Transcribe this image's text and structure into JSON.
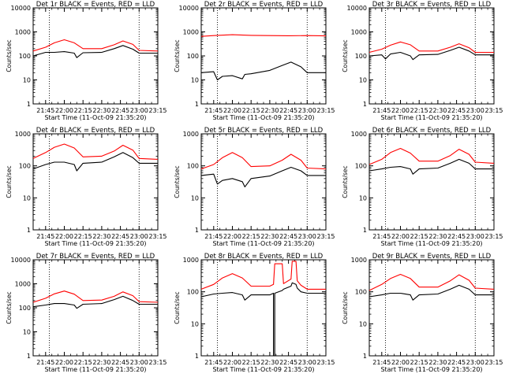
{
  "colors": {
    "events": "#000000",
    "lld": "#ff0000",
    "frame": "#000000",
    "background": "#ffffff"
  },
  "chart_data": [
    {
      "type": "line",
      "title": "Det 1r BLACK = Events, RED = LLD",
      "ylabel": "Counts/sec",
      "xlabel": "Start Time (11-Oct-09 21:35:20)",
      "yscale": "log",
      "ylim": [
        1,
        10000
      ],
      "yticks": [
        "1",
        "10",
        "100",
        "1000",
        "10000"
      ],
      "xticks": [
        "21:45",
        "22:00",
        "22:15",
        "22:30",
        "22:45",
        "23:00",
        "23:15"
      ],
      "xlim": [
        "21:35",
        "23:15"
      ],
      "markers": [
        "21:48",
        "23:00"
      ],
      "series": [
        {
          "key": "lld",
          "x": [
            "21:35",
            "21:45",
            "21:52",
            "22:00",
            "22:08",
            "22:15",
            "22:30",
            "22:40",
            "22:47",
            "22:55",
            "23:00",
            "23:15"
          ],
          "y": [
            160,
            230,
            350,
            470,
            350,
            200,
            200,
            290,
            420,
            300,
            170,
            160
          ]
        },
        {
          "key": "events",
          "x": [
            "21:35",
            "21:45",
            "21:52",
            "22:00",
            "22:08",
            "22:10",
            "22:15",
            "22:30",
            "22:40",
            "22:47",
            "22:55",
            "23:00",
            "23:15"
          ],
          "y": [
            100,
            140,
            140,
            150,
            130,
            85,
            135,
            140,
            200,
            270,
            190,
            130,
            130
          ]
        }
      ]
    },
    {
      "type": "line",
      "title": "Det 2r BLACK = Events, RED = LLD",
      "ylabel": "Counts/sec",
      "xlabel": "Start Time (11-Oct-09 21:35:20)",
      "yscale": "log",
      "ylim": [
        1,
        10000
      ],
      "yticks": [
        "1",
        "10",
        "100",
        "1000",
        "10000"
      ],
      "xticks": [
        "21:45",
        "22:00",
        "22:15",
        "22:30",
        "22:45",
        "23:00",
        "23:15"
      ],
      "xlim": [
        "21:35",
        "23:15"
      ],
      "markers": [
        "21:48",
        "23:00"
      ],
      "series": [
        {
          "key": "lld",
          "x": [
            "21:35",
            "21:45",
            "22:00",
            "22:15",
            "22:30",
            "22:45",
            "23:00",
            "23:15"
          ],
          "y": [
            650,
            700,
            760,
            720,
            700,
            690,
            700,
            680
          ]
        },
        {
          "key": "events",
          "x": [
            "21:35",
            "21:45",
            "21:48",
            "21:52",
            "22:00",
            "22:08",
            "22:10",
            "22:15",
            "22:30",
            "22:40",
            "22:47",
            "22:55",
            "23:00",
            "23:15"
          ],
          "y": [
            20,
            22,
            10,
            14,
            15,
            11,
            17,
            18,
            25,
            40,
            55,
            35,
            20,
            20
          ]
        }
      ]
    },
    {
      "type": "line",
      "title": "Det 3r BLACK = Events, RED = LLD",
      "ylabel": "Counts/sec",
      "xlabel": "Start Time (11-Oct-09 21:35:20)",
      "yscale": "log",
      "ylim": [
        1,
        10000
      ],
      "yticks": [
        "1",
        "10",
        "100",
        "1000",
        "10000"
      ],
      "xticks": [
        "21:45",
        "22:00",
        "22:15",
        "22:30",
        "22:45",
        "23:00",
        "23:15"
      ],
      "xlim": [
        "21:35",
        "23:15"
      ],
      "markers": [
        "21:48",
        "23:00"
      ],
      "series": [
        {
          "key": "lld",
          "x": [
            "21:35",
            "21:45",
            "21:52",
            "22:00",
            "22:08",
            "22:15",
            "22:30",
            "22:40",
            "22:47",
            "22:55",
            "23:00",
            "23:15"
          ],
          "y": [
            140,
            190,
            280,
            380,
            290,
            160,
            160,
            230,
            320,
            220,
            140,
            140
          ]
        },
        {
          "key": "events",
          "x": [
            "21:35",
            "21:45",
            "21:48",
            "21:52",
            "22:00",
            "22:08",
            "22:10",
            "22:15",
            "22:30",
            "22:40",
            "22:47",
            "22:55",
            "23:00",
            "23:15"
          ],
          "y": [
            100,
            110,
            75,
            120,
            140,
            100,
            70,
            110,
            115,
            170,
            230,
            160,
            110,
            110
          ]
        }
      ]
    },
    {
      "type": "line",
      "title": "Det 4r BLACK = Events, RED = LLD",
      "ylabel": "Counts/sec",
      "xlabel": "Start Time (11-Oct-09 21:35:20)",
      "yscale": "log",
      "ylim": [
        1,
        1000
      ],
      "yticks": [
        "1",
        "10",
        "100",
        "1000"
      ],
      "xticks": [
        "21:45",
        "22:00",
        "22:15",
        "22:30",
        "22:45",
        "23:00",
        "23:15"
      ],
      "xlim": [
        "21:35",
        "23:15"
      ],
      "markers": [
        "21:48",
        "23:00"
      ],
      "series": [
        {
          "key": "lld",
          "x": [
            "21:35",
            "21:45",
            "21:52",
            "22:00",
            "22:08",
            "22:15",
            "22:30",
            "22:40",
            "22:47",
            "22:55",
            "23:00",
            "23:15"
          ],
          "y": [
            170,
            260,
            380,
            480,
            360,
            190,
            200,
            290,
            440,
            310,
            170,
            160
          ]
        },
        {
          "key": "events",
          "x": [
            "21:35",
            "21:45",
            "21:52",
            "22:00",
            "22:08",
            "22:10",
            "22:15",
            "22:30",
            "22:40",
            "22:47",
            "22:55",
            "23:00",
            "23:15"
          ],
          "y": [
            80,
            110,
            130,
            130,
            110,
            70,
            120,
            130,
            190,
            260,
            180,
            120,
            120
          ]
        }
      ]
    },
    {
      "type": "line",
      "title": "Det 5r BLACK = Events, RED = LLD",
      "ylabel": "Counts/sec",
      "xlabel": "Start Time (11-Oct-09 21:35:20)",
      "yscale": "log",
      "ylim": [
        1,
        1000
      ],
      "yticks": [
        "1",
        "10",
        "100",
        "1000"
      ],
      "xticks": [
        "21:45",
        "22:00",
        "22:15",
        "22:30",
        "22:45",
        "23:00",
        "23:15"
      ],
      "xlim": [
        "21:35",
        "23:15"
      ],
      "markers": [
        "21:48",
        "23:00"
      ],
      "series": [
        {
          "key": "lld",
          "x": [
            "21:35",
            "21:45",
            "21:52",
            "22:00",
            "22:08",
            "22:15",
            "22:30",
            "22:40",
            "22:47",
            "22:55",
            "23:00",
            "23:15"
          ],
          "y": [
            80,
            110,
            180,
            260,
            180,
            95,
            100,
            150,
            230,
            150,
            85,
            80
          ]
        },
        {
          "key": "events",
          "x": [
            "21:35",
            "21:45",
            "21:48",
            "21:52",
            "22:00",
            "22:08",
            "22:10",
            "22:15",
            "22:30",
            "22:40",
            "22:47",
            "22:55",
            "23:00",
            "23:15"
          ],
          "y": [
            50,
            55,
            27,
            35,
            40,
            32,
            22,
            40,
            48,
            70,
            90,
            70,
            50,
            50
          ]
        }
      ]
    },
    {
      "type": "line",
      "title": "Det 6r BLACK = Events, RED = LLD",
      "ylabel": "Counts/sec",
      "xlabel": "Start Time (11-Oct-09 21:35:20)",
      "yscale": "log",
      "ylim": [
        1,
        1000
      ],
      "yticks": [
        "1",
        "10",
        "100",
        "1000"
      ],
      "xticks": [
        "21:45",
        "22:00",
        "22:15",
        "22:30",
        "22:45",
        "23:00",
        "23:15"
      ],
      "xlim": [
        "21:35",
        "23:15"
      ],
      "markers": [
        "21:48",
        "23:00"
      ],
      "series": [
        {
          "key": "lld",
          "x": [
            "21:35",
            "21:45",
            "21:52",
            "22:00",
            "22:08",
            "22:15",
            "22:30",
            "22:40",
            "22:47",
            "22:55",
            "23:00",
            "23:15"
          ],
          "y": [
            110,
            160,
            260,
            350,
            250,
            140,
            140,
            210,
            330,
            230,
            130,
            120
          ]
        },
        {
          "key": "events",
          "x": [
            "21:35",
            "21:45",
            "21:52",
            "22:00",
            "22:08",
            "22:10",
            "22:15",
            "22:30",
            "22:40",
            "22:47",
            "22:55",
            "23:00",
            "23:15"
          ],
          "y": [
            70,
            80,
            90,
            95,
            80,
            55,
            80,
            85,
            120,
            160,
            120,
            80,
            80
          ]
        }
      ]
    },
    {
      "type": "line",
      "title": "Det 7r BLACK = Events, RED = LLD",
      "ylabel": "Counts/sec",
      "xlabel": "Start Time (11-Oct-09 21:35:20)",
      "yscale": "log",
      "ylim": [
        1,
        10000
      ],
      "yticks": [
        "1",
        "10",
        "100",
        "1000",
        "10000"
      ],
      "xticks": [
        "21:45",
        "22:00",
        "22:15",
        "22:30",
        "22:45",
        "23:00",
        "23:15"
      ],
      "xlim": [
        "21:35",
        "23:15"
      ],
      "markers": [
        "21:48",
        "23:00"
      ],
      "series": [
        {
          "key": "lld",
          "x": [
            "21:35",
            "21:45",
            "21:52",
            "22:00",
            "22:08",
            "22:15",
            "22:30",
            "22:40",
            "22:47",
            "22:55",
            "23:00",
            "23:15"
          ],
          "y": [
            170,
            250,
            380,
            500,
            370,
            200,
            210,
            300,
            460,
            320,
            180,
            170
          ]
        },
        {
          "key": "events",
          "x": [
            "21:35",
            "21:45",
            "21:52",
            "22:00",
            "22:08",
            "22:10",
            "22:15",
            "22:30",
            "22:40",
            "22:47",
            "22:55",
            "23:00",
            "23:15"
          ],
          "y": [
            110,
            130,
            150,
            150,
            130,
            95,
            140,
            150,
            220,
            300,
            200,
            140,
            140
          ]
        }
      ]
    },
    {
      "type": "line",
      "title": "Det 8r BLACK = Events, RED = LLD",
      "ylabel": "Counts/sec",
      "xlabel": "Start Time (11-Oct-09 21:35:20)",
      "yscale": "log",
      "ylim": [
        1,
        1000
      ],
      "yticks": [
        "1",
        "10",
        "100",
        "1000"
      ],
      "xticks": [
        "21:45",
        "22:00",
        "22:15",
        "22:30",
        "22:45",
        "23:00",
        "23:15"
      ],
      "xlim": [
        "21:35",
        "23:15"
      ],
      "markers": [
        "21:48",
        "23:00"
      ],
      "series": [
        {
          "key": "lld",
          "x": [
            "21:35",
            "21:45",
            "21:52",
            "22:00",
            "22:08",
            "22:15",
            "22:30",
            "22:33",
            "22:34",
            "22:40",
            "22:41",
            "22:47",
            "22:48",
            "22:51",
            "22:52",
            "22:55",
            "23:00",
            "23:15"
          ],
          "y": [
            120,
            170,
            270,
            370,
            270,
            150,
            150,
            170,
            750,
            750,
            180,
            250,
            900,
            900,
            220,
            160,
            120,
            120
          ]
        },
        {
          "key": "events",
          "x": [
            "21:35",
            "21:45",
            "21:52",
            "22:00",
            "22:08",
            "22:10",
            "22:15",
            "22:30",
            "22:33",
            "22:33",
            "22:34",
            "22:34",
            "22:40",
            "22:41",
            "22:47",
            "22:48",
            "22:51",
            "22:52",
            "22:55",
            "23:00",
            "23:15"
          ],
          "y": [
            70,
            85,
            90,
            95,
            80,
            55,
            80,
            80,
            90,
            1,
            1,
            90,
            110,
            120,
            150,
            190,
            170,
            130,
            100,
            90,
            90
          ]
        }
      ]
    },
    {
      "type": "line",
      "title": "Det 9r BLACK = Events, RED = LLD",
      "ylabel": "Counts/sec",
      "xlabel": "Start Time (11-Oct-09 21:35:20)",
      "yscale": "log",
      "ylim": [
        1,
        1000
      ],
      "yticks": [
        "1",
        "10",
        "100",
        "1000"
      ],
      "xticks": [
        "21:45",
        "22:00",
        "22:15",
        "22:30",
        "22:45",
        "23:00",
        "23:15"
      ],
      "xlim": [
        "21:35",
        "23:15"
      ],
      "markers": [
        "21:48",
        "23:00"
      ],
      "series": [
        {
          "key": "lld",
          "x": [
            "21:35",
            "21:45",
            "21:52",
            "22:00",
            "22:08",
            "22:15",
            "22:30",
            "22:40",
            "22:47",
            "22:55",
            "23:00",
            "23:15"
          ],
          "y": [
            110,
            170,
            260,
            350,
            260,
            140,
            140,
            220,
            340,
            230,
            130,
            120
          ]
        },
        {
          "key": "events",
          "x": [
            "21:35",
            "21:45",
            "21:52",
            "22:00",
            "22:08",
            "22:10",
            "22:15",
            "22:30",
            "22:40",
            "22:47",
            "22:55",
            "23:00",
            "23:15"
          ],
          "y": [
            70,
            80,
            90,
            90,
            80,
            55,
            80,
            85,
            120,
            160,
            120,
            80,
            80
          ]
        }
      ]
    }
  ]
}
